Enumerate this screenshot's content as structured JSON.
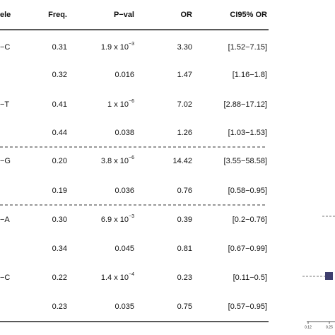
{
  "table": {
    "header": [
      "ele",
      "Freq.",
      "P−val",
      "OR",
      "CI95% OR"
    ],
    "rows": [
      {
        "allele": "−C",
        "freq": "0.31",
        "pval": "1.9 x 10",
        "pval_exp": "−3",
        "or": "3.30",
        "ci": "[1.52−7.15]"
      },
      {
        "freq": "0.32",
        "pval": "0.016",
        "or": "1.47",
        "ci": "[1.16−1.8]"
      },
      {
        "allele": "−T",
        "freq": "0.41",
        "pval": "1 x 10",
        "pval_exp": "−6",
        "or": "7.02",
        "ci": "[2.88−17.12]"
      },
      {
        "freq": "0.44",
        "pval": "0.038",
        "or": "1.26",
        "ci": "[1.03−1.53]"
      },
      {
        "allele": "−G",
        "freq": "0.20",
        "pval": "3.8 x 10",
        "pval_exp": "−6",
        "or": "14.42",
        "ci": "[3.55−58.58]"
      },
      {
        "freq": "0.19",
        "pval": "0.036",
        "or": "0.76",
        "ci": "[0.58−0.95]"
      },
      {
        "allele": "−A",
        "freq": "0.30",
        "pval": "6.9 x 10",
        "pval_exp": "−3",
        "or": "0.39",
        "ci": "[0.2−0.76]"
      },
      {
        "freq": "0.34",
        "pval": "0.045",
        "or": "0.81",
        "ci": "[0.67−0.99]"
      },
      {
        "allele": "−C",
        "freq": "0.22",
        "pval": "1.4 x 10",
        "pval_exp": "−4",
        "or": "0.23",
        "ci": "[0.11−0.5]"
      },
      {
        "freq": "0.23",
        "pval": "0.035",
        "or": "0.75",
        "ci": "[0.57−0.95]"
      }
    ]
  },
  "plot": {
    "axis_labels": [
      "0.12",
      "0.25"
    ]
  }
}
